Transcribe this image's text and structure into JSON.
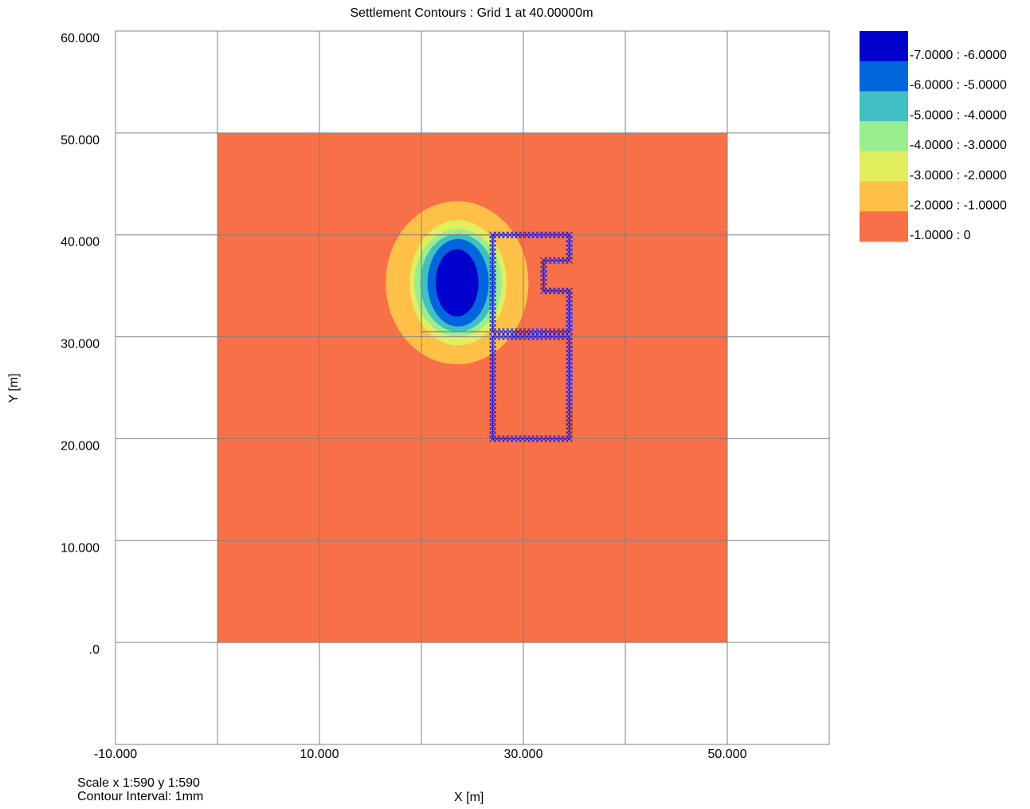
{
  "chart_data": {
    "type": "heatmap",
    "title": "Settlement Contours : Grid 1 at 40.00000m",
    "xlabel": "X [m]",
    "ylabel": "Y [m]",
    "xlim": [
      -10,
      60
    ],
    "ylim": [
      -10,
      60
    ],
    "x_ticks": [
      -10,
      0,
      10,
      20,
      30,
      40,
      50,
      60
    ],
    "y_ticks": [
      -10,
      0,
      10,
      20,
      30,
      40,
      50,
      60
    ],
    "x_tick_labels": [
      {
        "value": -10,
        "label": "-10.000"
      },
      {
        "value": 10,
        "label": "10.000"
      },
      {
        "value": 30,
        "label": "30.000"
      },
      {
        "value": 50,
        "label": "50.000"
      }
    ],
    "y_tick_labels": [
      {
        "value": 0,
        "label": ".0"
      },
      {
        "value": 10,
        "label": "10.000"
      },
      {
        "value": 20,
        "label": "20.000"
      },
      {
        "value": 30,
        "label": "30.000"
      },
      {
        "value": 40,
        "label": "40.000"
      },
      {
        "value": 50,
        "label": "50.000"
      },
      {
        "value": 60,
        "label": "60.000"
      }
    ],
    "grid": true,
    "legend_placement": "top-right",
    "grid_extent": {
      "x": [
        0,
        50
      ],
      "y": [
        0,
        50
      ]
    },
    "contour_bands": [
      {
        "label": "-7.0000 : -6.0000",
        "min": -7,
        "max": -6,
        "color": "#0000CC"
      },
      {
        "label": "-6.0000 : -5.0000",
        "min": -6,
        "max": -5,
        "color": "#0066DD"
      },
      {
        "label": "-5.0000 : -4.0000",
        "min": -5,
        "max": -4,
        "color": "#40C0C0"
      },
      {
        "label": "-4.0000 : -3.0000",
        "min": -4,
        "max": -3,
        "color": "#99EE90"
      },
      {
        "label": "-3.0000 : -2.0000",
        "min": -3,
        "max": -2,
        "color": "#E2EE5E"
      },
      {
        "label": "-2.0000 : -1.0000",
        "min": -2,
        "max": -1,
        "color": "#FFC048"
      },
      {
        "label": "-1.0000 : 0",
        "min": -1,
        "max": 0,
        "color": "#F87048"
      }
    ],
    "contour_regions": [
      {
        "band": "-2.0000 : -1.0000",
        "cx": 23.5,
        "cy": 35.3,
        "rx": 7.0,
        "ry": 8.0
      },
      {
        "band": "-3.0000 : -2.0000",
        "cx": 23.6,
        "cy": 35.3,
        "rx": 4.75,
        "ry": 6.15
      },
      {
        "band": "-4.0000 : -3.0000",
        "cx": 23.6,
        "cy": 35.3,
        "rx": 4.3,
        "ry": 5.3
      },
      {
        "band": "-5.0000 : -4.0000",
        "cx": 23.6,
        "cy": 35.3,
        "rx": 3.7,
        "ry": 4.8
      },
      {
        "band": "-6.0000 : -5.0000",
        "cx": 23.6,
        "cy": 35.3,
        "rx": 3.0,
        "ry": 4.3
      },
      {
        "band": "-7.0000 : -6.0000",
        "cx": 23.5,
        "cy": 35.3,
        "rx": 2.1,
        "ry": 3.3
      }
    ],
    "loaded_area": {
      "x": [
        20,
        27
      ],
      "y": [
        30.5,
        40
      ]
    },
    "marker_paths": [
      [
        [
          27,
          40
        ],
        [
          34.5,
          40
        ],
        [
          34.5,
          37.5
        ],
        [
          32,
          37.5
        ],
        [
          32,
          34.5
        ],
        [
          34.5,
          34.5
        ],
        [
          34.5,
          30.5
        ],
        [
          27,
          30.5
        ],
        [
          27,
          40
        ]
      ],
      [
        [
          27,
          30
        ],
        [
          34.5,
          30
        ],
        [
          34.5,
          20
        ],
        [
          27,
          20
        ],
        [
          27,
          30
        ]
      ]
    ],
    "marker_color": "#1F1FE0"
  },
  "footer": {
    "scale": "Scale x 1:590  y 1:590",
    "contour_interval": "Contour Interval:  1mm"
  }
}
